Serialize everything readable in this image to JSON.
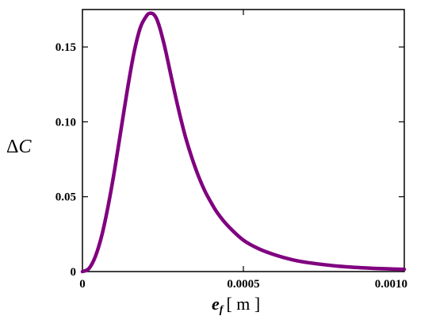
{
  "chart_data": {
    "type": "line",
    "xlabel": {
      "var": "e",
      "sub": "f",
      "unit": "[ m ]"
    },
    "ylabel": {
      "delta": "Δ",
      "var": "C"
    },
    "xlim": [
      0,
      0.001
    ],
    "ylim": [
      0,
      0.175
    ],
    "x_ticks": [
      {
        "value": 0,
        "label": "0"
      },
      {
        "value": 0.0005,
        "label": "0.0005"
      },
      {
        "value": 0.001,
        "label": "0.0010"
      }
    ],
    "y_ticks": [
      {
        "value": 0,
        "label": "0"
      },
      {
        "value": 0.05,
        "label": "0.05"
      },
      {
        "value": 0.1,
        "label": "0.10"
      },
      {
        "value": 0.15,
        "label": "0.15"
      }
    ],
    "grid": false,
    "series": [
      {
        "color": "#800080",
        "x": [
          0,
          2e-05,
          4e-05,
          6e-05,
          8e-05,
          0.0001,
          0.00012,
          0.00014,
          0.00016,
          0.00018,
          0.0002,
          0.00021,
          0.00022,
          0.00023,
          0.00024,
          0.00025,
          0.00026,
          0.00028,
          0.0003,
          0.00032,
          0.00034,
          0.00036,
          0.00038,
          0.0004,
          0.00042,
          0.00045,
          0.0005,
          0.00055,
          0.0006,
          0.00065,
          0.0007,
          0.0008,
          0.0009,
          0.001
        ],
        "y": [
          0,
          0.002,
          0.01,
          0.024,
          0.044,
          0.068,
          0.095,
          0.122,
          0.146,
          0.163,
          0.171,
          0.1725,
          0.172,
          0.169,
          0.163,
          0.155,
          0.146,
          0.126,
          0.107,
          0.09,
          0.076,
          0.064,
          0.054,
          0.046,
          0.039,
          0.031,
          0.021,
          0.015,
          0.011,
          0.008,
          0.006,
          0.0035,
          0.0022,
          0.0015
        ]
      }
    ]
  }
}
